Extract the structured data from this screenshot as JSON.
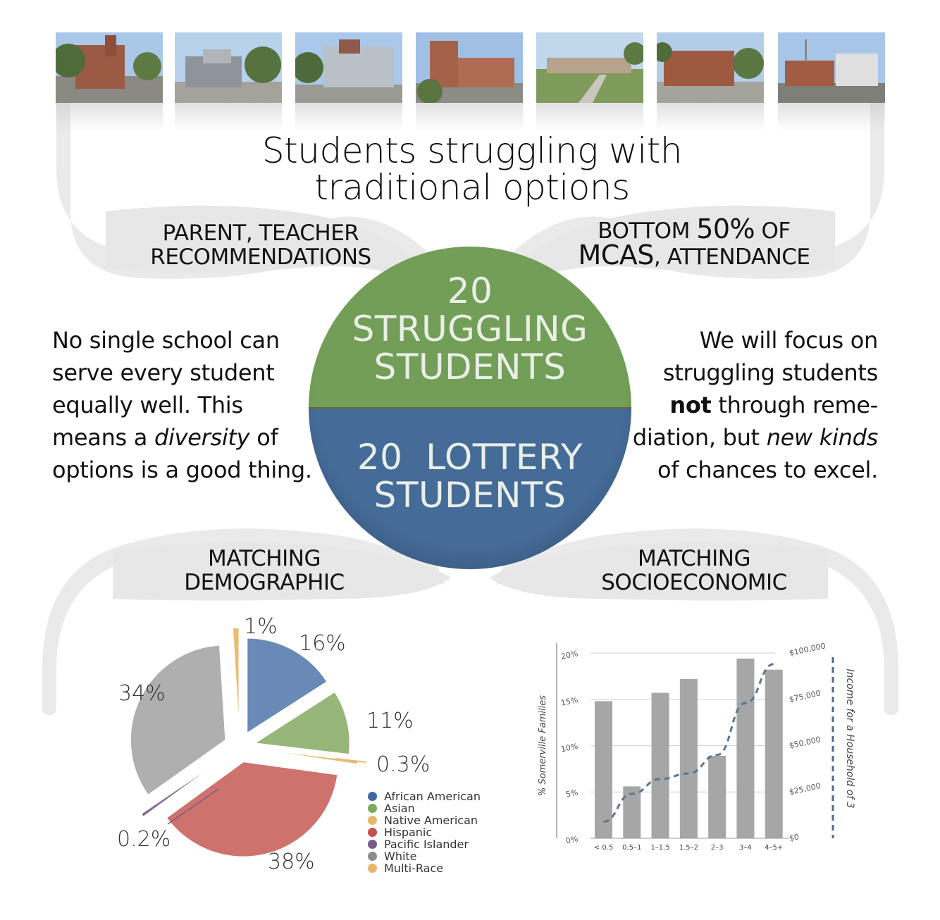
{
  "title": {
    "line1": "Students struggling with",
    "line2": "traditional options"
  },
  "school_photos": [
    "school-photo-1",
    "school-photo-2",
    "school-photo-3",
    "school-photo-4",
    "school-photo-5",
    "school-photo-6",
    "school-photo-7"
  ],
  "labels": {
    "recommendations_line1": "PARENT, TEACHER",
    "recommendations_line2": "RECOMMENDATIONS",
    "mcas_pre": "BOTTOM ",
    "mcas_pct": "50%",
    "mcas_post": " OF",
    "mcas_line2_big": "MCAS",
    "mcas_line2_rest": ", ATTENDANCE",
    "demographic_line1": "MATCHING",
    "demographic_line2": "DEMOGRAPHIC",
    "socioeconomic_line1": "MATCHING",
    "socioeconomic_line2": "SOCIOECONOMIC"
  },
  "circle": {
    "top_number": "20",
    "top_line1": "STRUGGLING",
    "top_line2": "STUDENTS",
    "bottom_line1": "20  LOTTERY",
    "bottom_line2": "STUDENTS",
    "top_color": "#739e57",
    "bottom_color": "#456b98"
  },
  "left_text": {
    "l1": "No single school can",
    "l2": "serve every student",
    "l3": "equally well. This",
    "l4_a": "means a ",
    "l4_em": "diversity",
    "l4_b": " of",
    "l5": "options is a good thing."
  },
  "right_text": {
    "l1": "We will focus on",
    "l2": "struggling students",
    "l3_strong": "not",
    "l3_rest": " through reme-",
    "l4_a": "diation, but ",
    "l4_em": "new kinds",
    "l5": "of chances to excel."
  },
  "chart_data": [
    {
      "type": "pie",
      "title": "",
      "slices": [
        {
          "name": "African American",
          "value": 16,
          "label": "16%",
          "color": "#5d80b0"
        },
        {
          "name": "Asian",
          "value": 11,
          "label": "11%",
          "color": "#8fb06e"
        },
        {
          "name": "Native American",
          "value": 0.3,
          "label": "0.3%",
          "color": "#e8b86a"
        },
        {
          "name": "Hispanic",
          "value": 38,
          "label": "38%",
          "color": "#c96760"
        },
        {
          "name": "Pacific Islander",
          "value": 0.2,
          "label": "0.2%",
          "color": "#7a5a8a"
        },
        {
          "name": "White",
          "value": 34,
          "label": "34%",
          "color": "#a9a9a9"
        },
        {
          "name": "Multi-Race",
          "value": 1,
          "label": "1%",
          "color": "#e8b86a"
        }
      ],
      "legend": [
        "African American",
        "Asian",
        "Native American",
        "Hispanic",
        "Pacific Islander",
        "White",
        "Multi-Race"
      ],
      "legend_colors": [
        "#3f6aa0",
        "#7fa95a",
        "#e8b86a",
        "#c2524a",
        "#7a5a8a",
        "#8c8c8c",
        "#e8b86a"
      ],
      "legend_placement": "bottom-right"
    },
    {
      "type": "bar",
      "title": "",
      "categories": [
        "< 0.5",
        "0.5–1",
        "1–1.5",
        "1.5–2",
        "2–3",
        "3–4",
        "4–5+"
      ],
      "series": [
        {
          "values": [
            14.8,
            5.6,
            15.7,
            17.2,
            8.9,
            19.4,
            18.2
          ],
          "color": "#a6a6a6"
        }
      ],
      "line": {
        "values": [
          9000,
          24000,
          32000,
          35000,
          45000,
          73000,
          94000
        ],
        "axis": "right",
        "style": "dashed",
        "color": "#5a7694"
      },
      "ylabel": "% Somerville Families",
      "ylabel_right": "Income for a Household of 3",
      "ylim": [
        0,
        20
      ],
      "ylim_right": [
        0,
        100000
      ],
      "yticks": [
        "0%",
        "5%",
        "10%",
        "15%",
        "20%"
      ],
      "yticks_right": [
        "$0",
        "$25,000",
        "$50,000",
        "$75,000",
        "$100,000"
      ],
      "grid": true
    }
  ]
}
